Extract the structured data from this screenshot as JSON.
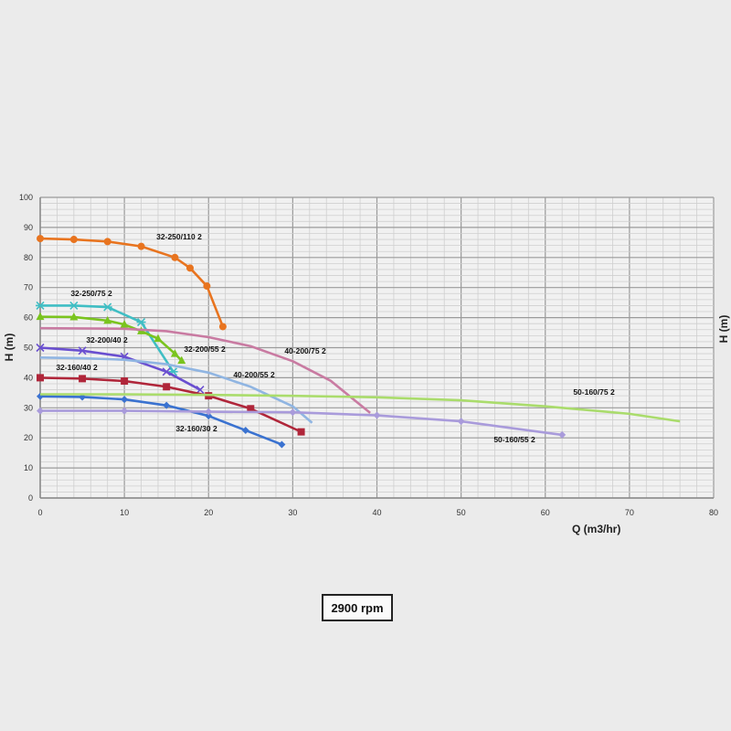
{
  "chart_data": {
    "type": "line",
    "title": "",
    "xlabel": "Q (m3/hr)",
    "ylabel": "H (m)",
    "ylabel_right": "H (m)",
    "xlim": [
      0,
      80
    ],
    "ylim": [
      0,
      100
    ],
    "xticks": [
      0,
      10,
      20,
      30,
      40,
      50,
      60,
      70,
      80
    ],
    "yticks": [
      0,
      10,
      20,
      30,
      40,
      50,
      60,
      70,
      80,
      90,
      100
    ],
    "grid": true,
    "annotation": "2900 rpm",
    "series": [
      {
        "name": "32-250/110 2",
        "color": "#e8741f",
        "marker": "circle",
        "x": [
          0,
          4,
          8,
          12,
          16,
          17.8,
          19.8,
          21.7
        ],
        "y": [
          86.3,
          86,
          85.3,
          83.7,
          80,
          76.5,
          70.5,
          57
        ]
      },
      {
        "name": "32-250/75 2",
        "color": "#3fbec4",
        "marker": "star",
        "x": [
          0,
          4,
          8,
          12,
          15.8
        ],
        "y": [
          64,
          64,
          63.5,
          58.5,
          42
        ]
      },
      {
        "name": "32-200/55 2",
        "color": "#7ac41e",
        "marker": "triangle",
        "x": [
          0,
          4,
          8,
          10,
          12,
          14,
          16,
          16.8
        ],
        "y": [
          60.3,
          60.2,
          59,
          57.7,
          55.5,
          53,
          48,
          45.7
        ]
      },
      {
        "name": "32-200/40 2",
        "color": "#6a4fd0",
        "marker": "x",
        "x": [
          0,
          5,
          10,
          15,
          19
        ],
        "y": [
          50,
          49,
          47,
          42,
          36
        ]
      },
      {
        "name": "32-160/40 2",
        "color": "#b0263a",
        "marker": "square",
        "x": [
          0,
          5,
          10,
          15,
          20,
          25,
          31
        ],
        "y": [
          40,
          39.7,
          38.9,
          37,
          34,
          29.7,
          22
        ]
      },
      {
        "name": "32-160/30 2",
        "color": "#3a72d0",
        "marker": "diamond",
        "x": [
          0,
          5,
          10,
          15,
          20,
          24.4,
          28.7
        ],
        "y": [
          33.8,
          33.6,
          32.8,
          30.8,
          27.3,
          22.5,
          17.8
        ]
      },
      {
        "name": "40-200/75 2",
        "color": "#c97ba2",
        "marker": "none",
        "x": [
          0,
          10,
          15,
          20,
          25,
          30,
          34.5,
          39.2
        ],
        "y": [
          56.5,
          56.3,
          55.5,
          53.5,
          50.5,
          45.5,
          39,
          28.3
        ]
      },
      {
        "name": "40-200/55 2",
        "color": "#90b5e2",
        "marker": "none",
        "x": [
          0,
          5,
          10,
          15,
          20,
          25,
          30,
          32.3
        ],
        "y": [
          46.7,
          46.5,
          46,
          44.5,
          41.7,
          37,
          30.5,
          25
        ]
      },
      {
        "name": "50-160/75 2",
        "color": "#aadc6c",
        "marker": "none",
        "x": [
          0,
          10,
          20,
          30,
          40,
          50,
          60,
          70,
          76
        ],
        "y": [
          34.5,
          34.5,
          34.3,
          34,
          33.5,
          32.5,
          30.5,
          28,
          25.5
        ]
      },
      {
        "name": "50-160/55 2",
        "color": "#a99bdb",
        "marker": "diamond",
        "x": [
          0,
          10,
          20,
          30,
          40,
          50,
          62
        ],
        "y": [
          29,
          29,
          28.7,
          28.5,
          27.5,
          25.5,
          21
        ]
      }
    ]
  }
}
